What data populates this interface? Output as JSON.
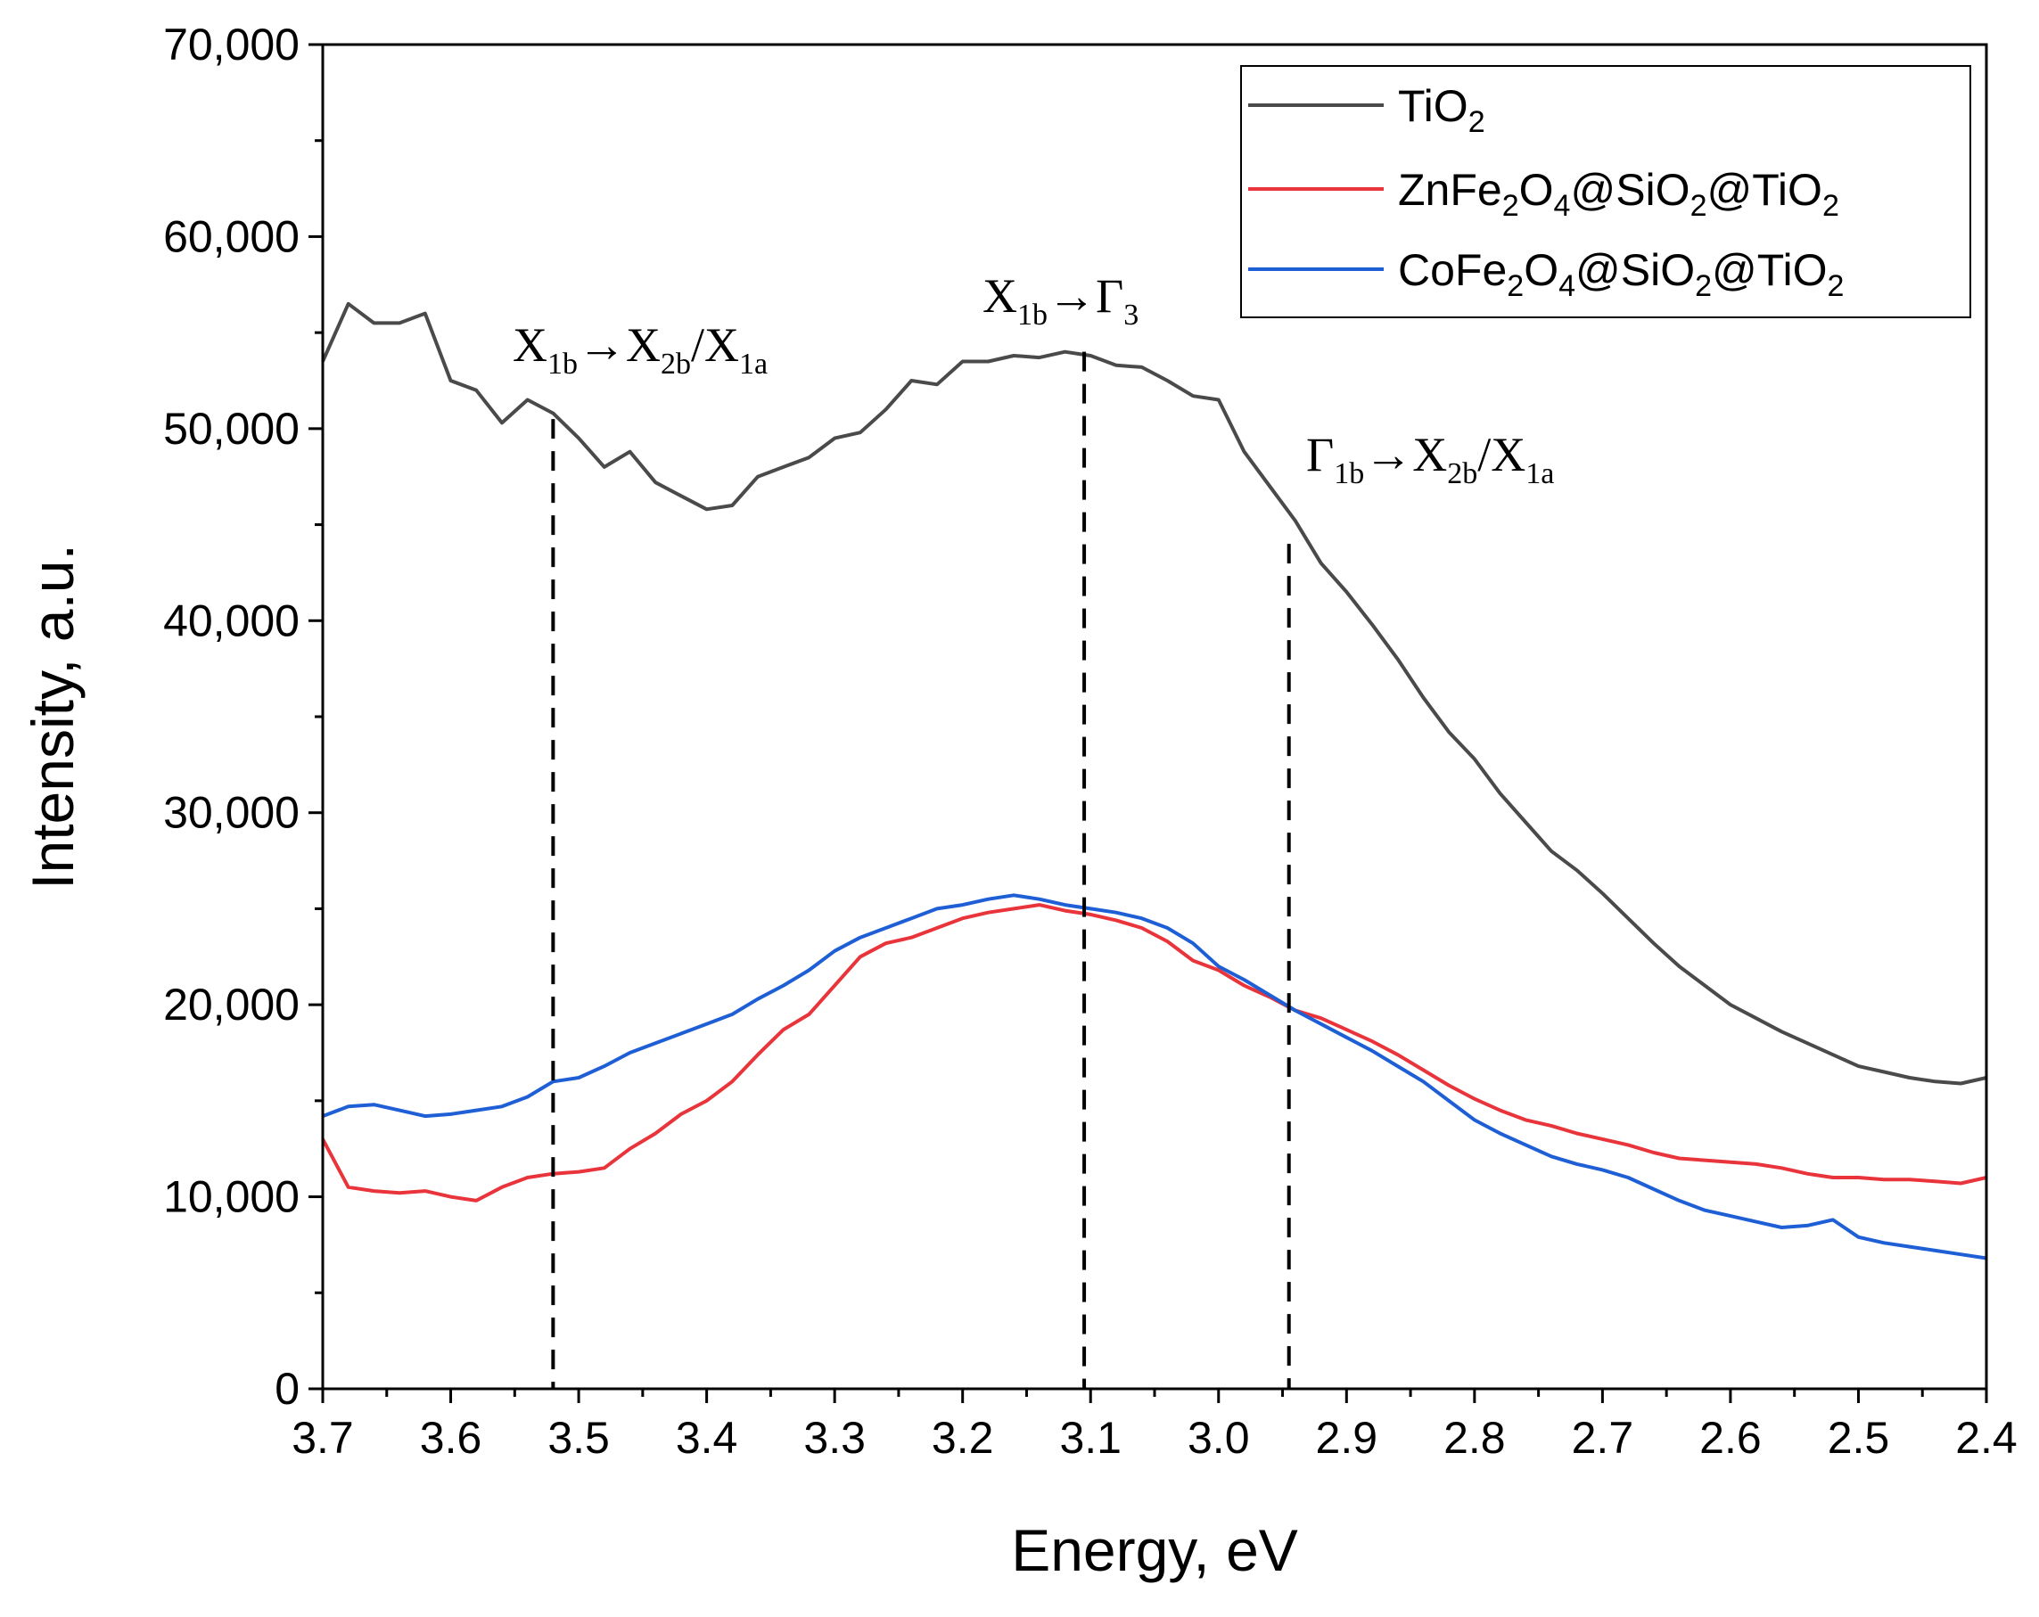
{
  "chart_data": {
    "type": "line",
    "title": "",
    "xlabel": "Energy, eV",
    "ylabel": "Intensity, a.u.",
    "xlim": [
      3.7,
      2.4
    ],
    "ylim": [
      0,
      70000
    ],
    "x_reversed": true,
    "grid": false,
    "legend_position": "top-right",
    "x_ticks": [
      3.7,
      3.6,
      3.5,
      3.4,
      3.3,
      3.2,
      3.1,
      3.0,
      2.9,
      2.8,
      2.7,
      2.6,
      2.5,
      2.4
    ],
    "x_tick_labels": [
      "3.7",
      "3.6",
      "3.5",
      "3.4",
      "3.3",
      "3.2",
      "3.1",
      "3.0",
      "2.9",
      "2.8",
      "2.7",
      "2.6",
      "2.5",
      "2.4"
    ],
    "y_ticks": [
      0,
      10000,
      20000,
      30000,
      40000,
      50000,
      60000,
      70000
    ],
    "y_tick_labels": [
      "0",
      "10,000",
      "20,000",
      "30,000",
      "40,000",
      "50,000",
      "60,000",
      "70,000"
    ],
    "x": [
      3.7,
      3.68,
      3.66,
      3.64,
      3.62,
      3.6,
      3.58,
      3.56,
      3.54,
      3.52,
      3.5,
      3.48,
      3.46,
      3.44,
      3.42,
      3.4,
      3.38,
      3.36,
      3.34,
      3.32,
      3.3,
      3.28,
      3.26,
      3.24,
      3.22,
      3.2,
      3.18,
      3.16,
      3.14,
      3.12,
      3.1,
      3.08,
      3.06,
      3.04,
      3.02,
      3.0,
      2.98,
      2.96,
      2.94,
      2.92,
      2.9,
      2.88,
      2.86,
      2.84,
      2.82,
      2.8,
      2.78,
      2.76,
      2.74,
      2.72,
      2.7,
      2.68,
      2.66,
      2.64,
      2.62,
      2.6,
      2.58,
      2.56,
      2.54,
      2.52,
      2.5,
      2.48,
      2.46,
      2.44,
      2.42,
      2.4
    ],
    "series": [
      {
        "name": "TiO2",
        "color": "#4a4a4a",
        "values": [
          53500,
          56500,
          55500,
          55500,
          56000,
          52500,
          52000,
          50300,
          51500,
          50800,
          49500,
          48000,
          48800,
          47200,
          46500,
          45800,
          46000,
          47500,
          48000,
          48500,
          49500,
          49800,
          51000,
          52500,
          52300,
          53500,
          53500,
          53800,
          53700,
          54000,
          53800,
          53300,
          53200,
          52500,
          51700,
          51500,
          48800,
          47000,
          45200,
          43000,
          41500,
          39800,
          38000,
          36000,
          34200,
          32800,
          31000,
          29500,
          28000,
          27000,
          25800,
          24500,
          23200,
          22000,
          21000,
          20000,
          19300,
          18600,
          18000,
          17400,
          16800,
          16500,
          16200,
          16000,
          15900,
          16200
        ]
      },
      {
        "name": "ZnFe2O4@SiO2@TiO2",
        "color": "#e8343a",
        "values": [
          13000,
          10500,
          10300,
          10200,
          10300,
          10000,
          9800,
          10500,
          11000,
          11200,
          11300,
          11500,
          12500,
          13300,
          14300,
          15000,
          16000,
          17400,
          18700,
          19500,
          21000,
          22500,
          23200,
          23500,
          24000,
          24500,
          24800,
          25000,
          25200,
          24900,
          24700,
          24400,
          24000,
          23300,
          22300,
          21800,
          21000,
          20400,
          19700,
          19300,
          18700,
          18100,
          17400,
          16600,
          15800,
          15100,
          14500,
          14000,
          13700,
          13300,
          13000,
          12700,
          12300,
          12000,
          11900,
          11800,
          11700,
          11500,
          11200,
          11000,
          11000,
          10900,
          10900,
          10800,
          10700,
          11000
        ]
      },
      {
        "name": "CoFe2O4@SiO2@TiO2",
        "color": "#1f5fd6",
        "values": [
          14200,
          14700,
          14800,
          14500,
          14200,
          14300,
          14500,
          14700,
          15200,
          16000,
          16200,
          16800,
          17500,
          18000,
          18500,
          19000,
          19500,
          20300,
          21000,
          21800,
          22800,
          23500,
          24000,
          24500,
          25000,
          25200,
          25500,
          25700,
          25500,
          25200,
          25000,
          24800,
          24500,
          24000,
          23200,
          22000,
          21300,
          20500,
          19700,
          19000,
          18300,
          17600,
          16800,
          16000,
          15000,
          14000,
          13300,
          12700,
          12100,
          11700,
          11400,
          11000,
          10400,
          9800,
          9300,
          9000,
          8700,
          8400,
          8500,
          8800,
          7900,
          7600,
          7400,
          7200,
          7000,
          6800
        ]
      }
    ],
    "legend": [
      {
        "label": "TiO",
        "sub": "2"
      },
      {
        "label": "ZnFe",
        "sub1": "2",
        "mid1": "O",
        "sub2": "4",
        "rest": "@SiO",
        "sub3": "2",
        "rest2": "@TiO",
        "sub4": "2"
      },
      {
        "label": "CoFe",
        "sub1": "2",
        "mid1": "O",
        "sub2": "4",
        "rest": "@SiO",
        "sub3": "2",
        "rest2": "@TiO",
        "sub4": "2"
      }
    ],
    "vertical_markers": [
      3.52,
      3.105,
      2.945
    ],
    "annotations": [
      {
        "base1": "X",
        "sub1": "1b",
        "arrow": "→",
        "base2": "X",
        "sub2": "2b",
        "slash": "/",
        "base3": "X",
        "sub3": "1a"
      },
      {
        "base1": "X",
        "sub1": "1b",
        "arrow": "→",
        "base2": "Γ",
        "sub2": "3"
      },
      {
        "base1": "Γ",
        "sub1": "1b",
        "arrow": "→",
        "base2": "X",
        "sub2": "2b",
        "slash": "/",
        "base3": "X",
        "sub3": "1a"
      }
    ]
  }
}
